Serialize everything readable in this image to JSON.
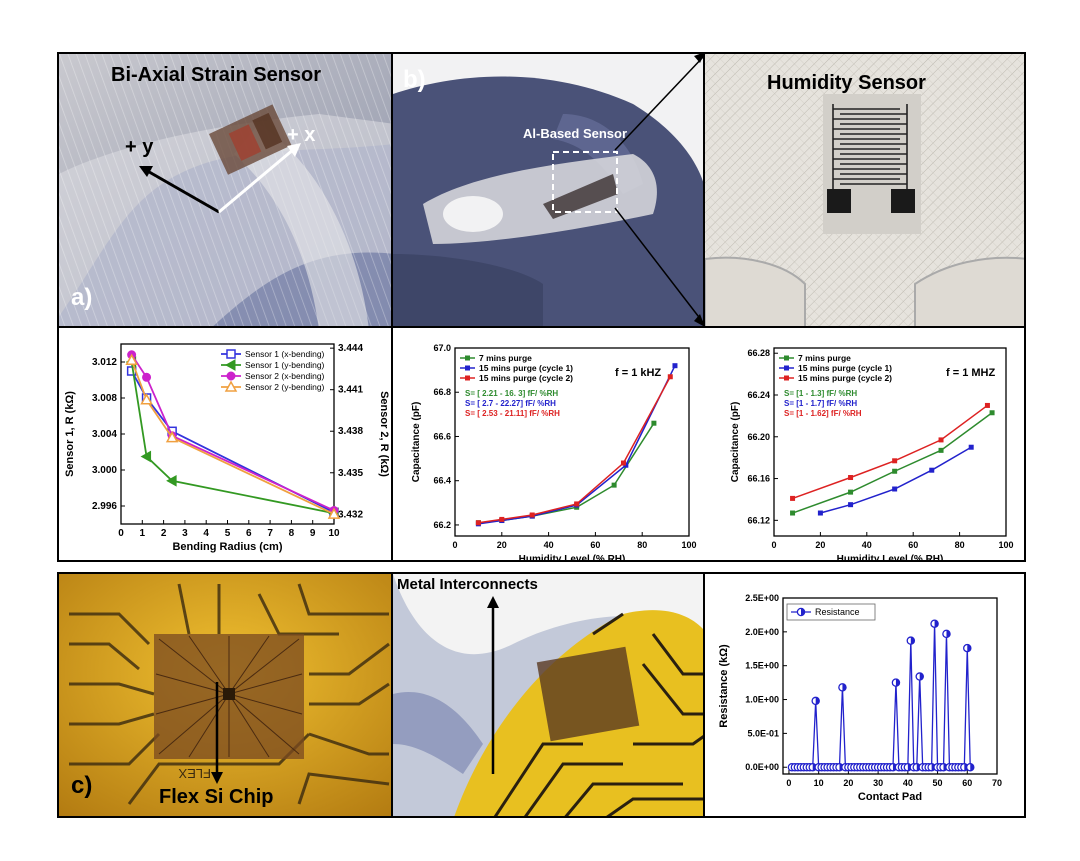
{
  "photo_labels": {
    "strain_title": "Bi-Axial Strain Sensor",
    "axis_y": "+ y",
    "axis_x": "+ x",
    "panel_a": "a)",
    "panel_b": "b)",
    "al_sensor": "Al-Based Sensor",
    "humidity_title": "Humidity Sensor",
    "panel_c": "c)",
    "flex_chip": "Flex Si Chip",
    "metal_interconnects": "Metal Interconnects",
    "chip_print": "FLEX"
  },
  "colors": {
    "sensor1x": "#3333dd",
    "sensor1y": "#339922",
    "sensor2x": "#cc22cc",
    "sensor2y": "#f0a040",
    "green": "#2e8b2e",
    "blue": "#2222cc",
    "red": "#dd2222",
    "resistance": "#2222cc"
  },
  "chart_data": [
    {
      "type": "line",
      "xlabel": "Bending Radius (cm)",
      "ylabel": "Sensor 1, R (kΩ)",
      "y2label": "Sensor 2, R (kΩ)",
      "xlim": [
        0,
        10
      ],
      "ylim": [
        2.994,
        3.014
      ],
      "y2lim": [
        3.4313,
        3.4443
      ],
      "xticks": [
        "0",
        "1",
        "2",
        "3",
        "4",
        "5",
        "6",
        "7",
        "8",
        "9",
        "10"
      ],
      "yticks": [
        "2.996",
        "3.000",
        "3.004",
        "3.008",
        "3.012"
      ],
      "y2ticks": [
        "3.432",
        "3.435",
        "3.438",
        "3.441",
        "3.444"
      ],
      "grid": false,
      "legend_position": "top-right",
      "series": [
        {
          "name": "Sensor 1 (x-bending)",
          "x": [
            0.5,
            1.2,
            2.4,
            10
          ],
          "y": [
            3.011,
            3.008,
            3.0043,
            2.9953
          ]
        },
        {
          "name": "Sensor 1 (y-bending)",
          "x": [
            0.5,
            1.2,
            2.4,
            10
          ],
          "y": [
            3.012,
            3.0015,
            2.9988,
            2.9952
          ]
        },
        {
          "name": "Sensor 2 (x-bending)",
          "x": [
            0.5,
            1.2,
            2.4,
            10
          ],
          "y": [
            3.0128,
            3.0103,
            3.0038,
            2.9955
          ]
        },
        {
          "name": "Sensor 2 (y-bending)",
          "x": [
            0.5,
            1.2,
            2.4,
            10
          ],
          "y": [
            3.0122,
            3.0078,
            3.0036,
            2.9951
          ]
        }
      ]
    },
    {
      "type": "line",
      "annotation": "f = 1 kHZ",
      "xlabel": "Humidity Level (% RH)",
      "ylabel": "Capacitance (pF)",
      "xlim": [
        0,
        100
      ],
      "ylim": [
        66.15,
        67.0
      ],
      "xticks": [
        "0",
        "20",
        "40",
        "60",
        "80",
        "100"
      ],
      "yticks": [
        "66.2",
        "66.4",
        "66.6",
        "66.8",
        "67.0"
      ],
      "grid": false,
      "legend_position": "top-left",
      "sensitivity": [
        {
          "text": "S=  [ 2.21 - 16. 3] fF/ %RH",
          "color": "#2e8b2e"
        },
        {
          "text": "S=  [ 2.7 - 22.27] fF/ %RH",
          "color": "#2222cc"
        },
        {
          "text": "S=  [ 2.53 - 21.11] fF/ %RH",
          "color": "#dd2222"
        }
      ],
      "series": [
        {
          "name": "7 mins purge",
          "x": [
            10,
            20,
            33,
            52,
            68,
            85
          ],
          "y": [
            66.21,
            66.22,
            66.24,
            66.28,
            66.38,
            66.66
          ]
        },
        {
          "name": "15 mins purge (cycle 1)",
          "x": [
            10,
            20,
            33,
            52,
            73,
            94
          ],
          "y": [
            66.205,
            66.22,
            66.24,
            66.29,
            66.47,
            66.92
          ]
        },
        {
          "name": "15 mins purge (cycle 2)",
          "x": [
            10,
            20,
            33,
            52,
            72,
            92
          ],
          "y": [
            66.21,
            66.225,
            66.245,
            66.295,
            66.48,
            66.87
          ]
        }
      ]
    },
    {
      "type": "line",
      "annotation": "f = 1 MHZ",
      "xlabel": "Humidity Level (% RH)",
      "ylabel": "Capacitance (pF)",
      "xlim": [
        0,
        100
      ],
      "ylim": [
        66.105,
        66.285
      ],
      "xticks": [
        "0",
        "20",
        "40",
        "60",
        "80",
        "100"
      ],
      "yticks": [
        "66.12",
        "66.16",
        "66.20",
        "66.24",
        "66.28"
      ],
      "grid": false,
      "legend_position": "top-left",
      "sensitivity": [
        {
          "text": "S=  [1 - 1.3] fF/ %RH",
          "color": "#2e8b2e"
        },
        {
          "text": "S=  [1 - 1.7] fF/ %RH",
          "color": "#2222cc"
        },
        {
          "text": "S=  [1 - 1.62] fF/ %RH",
          "color": "#dd2222"
        }
      ],
      "series": [
        {
          "name": "7 mins purge",
          "x": [
            8,
            33,
            52,
            72,
            94
          ],
          "y": [
            66.127,
            66.147,
            66.167,
            66.187,
            66.223
          ]
        },
        {
          "name": "15 mins purge (cycle 1)",
          "x": [
            20,
            33,
            52,
            68,
            85
          ],
          "y": [
            66.127,
            66.135,
            66.15,
            66.168,
            66.19
          ]
        },
        {
          "name": "15 mins purge (cycle 2)",
          "x": [
            8,
            33,
            52,
            72,
            92
          ],
          "y": [
            66.141,
            66.161,
            66.177,
            66.197,
            66.23
          ]
        }
      ]
    },
    {
      "type": "line",
      "xlabel": "Contact Pad",
      "ylabel": "Resistance (kΩ)",
      "xlim": [
        -2,
        70
      ],
      "ylim": [
        -0.1,
        2.5
      ],
      "xticks": [
        "0",
        "10",
        "20",
        "30",
        "40",
        "50",
        "60",
        "70"
      ],
      "yticks": [
        "0.0E+00",
        "5.0E-01",
        "1.0E+00",
        "1.5E+00",
        "2.0E+00",
        "2.5E+00"
      ],
      "grid": false,
      "legend_position": "top-left",
      "series": [
        {
          "name": "Resistance",
          "x": [
            1,
            2,
            3,
            4,
            5,
            6,
            7,
            8,
            9,
            10,
            11,
            12,
            13,
            14,
            15,
            16,
            17,
            18,
            19,
            20,
            21,
            22,
            23,
            24,
            25,
            26,
            27,
            28,
            29,
            30,
            31,
            32,
            33,
            34,
            35,
            36,
            37,
            38,
            39,
            40,
            41,
            42,
            43,
            44,
            45,
            46,
            47,
            48,
            49,
            50,
            51,
            52,
            53,
            54,
            55,
            56,
            57,
            58,
            59,
            60,
            61
          ],
          "y": [
            0,
            0,
            0,
            0,
            0,
            0,
            0,
            0,
            0.98,
            0,
            0,
            0,
            0,
            0,
            0,
            0,
            0,
            1.18,
            0,
            0,
            0,
            0,
            0,
            0,
            0,
            0,
            0,
            0,
            0,
            0,
            0,
            0,
            0,
            0,
            0,
            1.25,
            0,
            0,
            0,
            0,
            1.87,
            0,
            0,
            1.34,
            0,
            0,
            0,
            0,
            2.12,
            0,
            0,
            0,
            1.97,
            0,
            0,
            0,
            0,
            0,
            0,
            1.76,
            0
          ]
        }
      ]
    }
  ]
}
